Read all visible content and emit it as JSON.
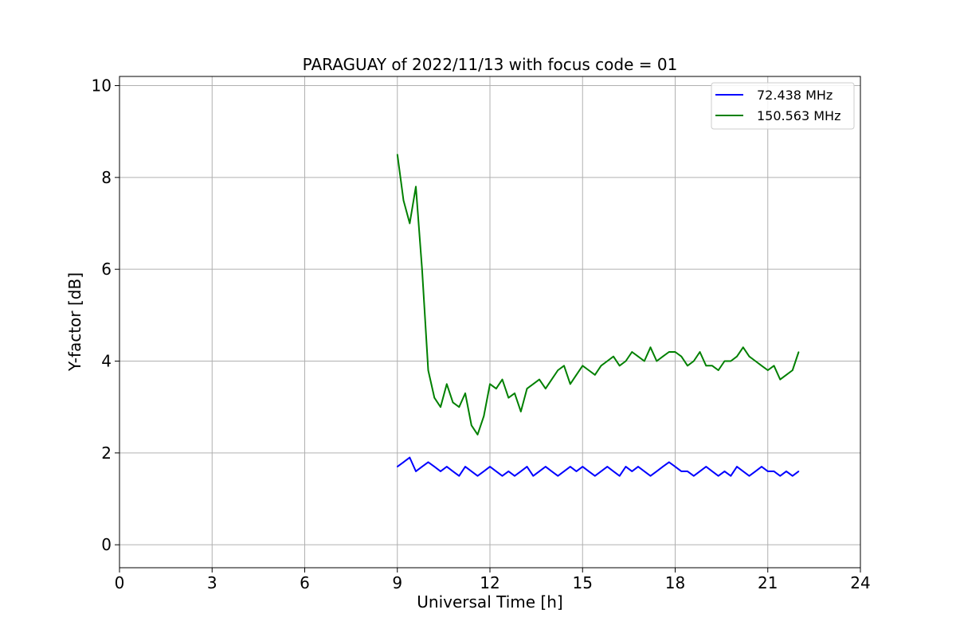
{
  "chart_data": {
    "type": "line",
    "title": "PARAGUAY of 2022/11/13 with focus code = 01",
    "xlabel": "Universal Time [h]",
    "ylabel": "Y-factor [dB]",
    "xlim": [
      0,
      24
    ],
    "ylim": [
      -0.5,
      10.2
    ],
    "xticks": [
      0,
      3,
      6,
      9,
      12,
      15,
      18,
      21,
      24
    ],
    "yticks": [
      0,
      2,
      4,
      6,
      8,
      10
    ],
    "grid": true,
    "legend_position": "top-right",
    "series": [
      {
        "name": "72.438 MHz",
        "color": "#0000ff",
        "x": [
          9.0,
          9.2,
          9.4,
          9.6,
          9.8,
          10.0,
          10.2,
          10.4,
          10.6,
          10.8,
          11.0,
          11.2,
          11.4,
          11.6,
          11.8,
          12.0,
          12.2,
          12.4,
          12.6,
          12.8,
          13.0,
          13.2,
          13.4,
          13.6,
          13.8,
          14.0,
          14.2,
          14.4,
          14.6,
          14.8,
          15.0,
          15.2,
          15.4,
          15.6,
          15.8,
          16.0,
          16.2,
          16.4,
          16.6,
          16.8,
          17.0,
          17.2,
          17.4,
          17.6,
          17.8,
          18.0,
          18.2,
          18.4,
          18.6,
          18.8,
          19.0,
          19.2,
          19.4,
          19.6,
          19.8,
          20.0,
          20.2,
          20.4,
          20.6,
          20.8,
          21.0,
          21.2,
          21.4,
          21.6,
          21.8,
          22.0
        ],
        "y": [
          1.7,
          1.8,
          1.9,
          1.6,
          1.7,
          1.8,
          1.7,
          1.6,
          1.7,
          1.6,
          1.5,
          1.7,
          1.6,
          1.5,
          1.6,
          1.7,
          1.6,
          1.5,
          1.6,
          1.5,
          1.6,
          1.7,
          1.5,
          1.6,
          1.7,
          1.6,
          1.5,
          1.6,
          1.7,
          1.6,
          1.7,
          1.6,
          1.5,
          1.6,
          1.7,
          1.6,
          1.5,
          1.7,
          1.6,
          1.7,
          1.6,
          1.5,
          1.6,
          1.7,
          1.8,
          1.7,
          1.6,
          1.6,
          1.5,
          1.6,
          1.7,
          1.6,
          1.5,
          1.6,
          1.5,
          1.7,
          1.6,
          1.5,
          1.6,
          1.7,
          1.6,
          1.6,
          1.5,
          1.6,
          1.5,
          1.6
        ]
      },
      {
        "name": "150.563 MHz",
        "color": "#008000",
        "x": [
          9.0,
          9.2,
          9.4,
          9.6,
          9.8,
          10.0,
          10.2,
          10.4,
          10.6,
          10.8,
          11.0,
          11.2,
          11.4,
          11.6,
          11.8,
          12.0,
          12.2,
          12.4,
          12.6,
          12.8,
          13.0,
          13.2,
          13.4,
          13.6,
          13.8,
          14.0,
          14.2,
          14.4,
          14.6,
          14.8,
          15.0,
          15.2,
          15.4,
          15.6,
          15.8,
          16.0,
          16.2,
          16.4,
          16.6,
          16.8,
          17.0,
          17.2,
          17.4,
          17.6,
          17.8,
          18.0,
          18.2,
          18.4,
          18.6,
          18.8,
          19.0,
          19.2,
          19.4,
          19.6,
          19.8,
          20.0,
          20.2,
          20.4,
          20.6,
          20.8,
          21.0,
          21.2,
          21.4,
          21.6,
          21.8,
          22.0
        ],
        "y": [
          8.5,
          7.5,
          7.0,
          7.8,
          6.0,
          3.8,
          3.2,
          3.0,
          3.5,
          3.1,
          3.0,
          3.3,
          2.6,
          2.4,
          2.8,
          3.5,
          3.4,
          3.6,
          3.2,
          3.3,
          2.9,
          3.4,
          3.5,
          3.6,
          3.4,
          3.6,
          3.8,
          3.9,
          3.5,
          3.7,
          3.9,
          3.8,
          3.7,
          3.9,
          4.0,
          4.1,
          3.9,
          4.0,
          4.2,
          4.1,
          4.0,
          4.3,
          4.0,
          4.1,
          4.2,
          4.2,
          4.1,
          3.9,
          4.0,
          4.2,
          3.9,
          3.9,
          3.8,
          4.0,
          4.0,
          4.1,
          4.3,
          4.1,
          4.0,
          3.9,
          3.8,
          3.9,
          3.6,
          3.7,
          3.8,
          4.2
        ]
      }
    ]
  }
}
